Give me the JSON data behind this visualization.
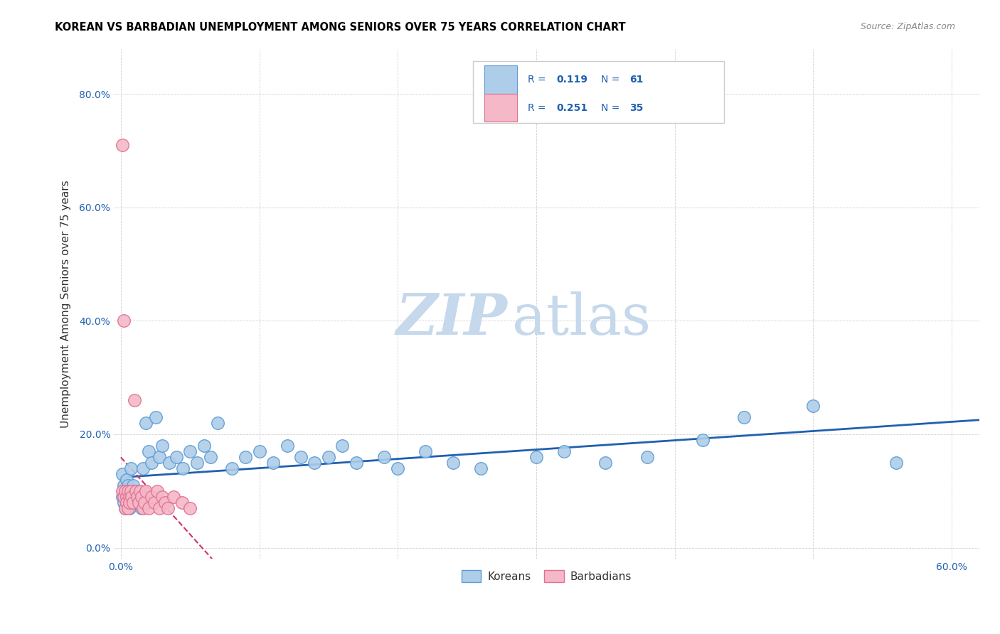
{
  "title": "KOREAN VS BARBADIAN UNEMPLOYMENT AMONG SENIORS OVER 75 YEARS CORRELATION CHART",
  "source": "Source: ZipAtlas.com",
  "ylabel": "Unemployment Among Seniors over 75 years",
  "xlim": [
    -0.005,
    0.62
  ],
  "ylim": [
    -0.02,
    0.88
  ],
  "xticks": [
    0.0,
    0.1,
    0.2,
    0.3,
    0.4,
    0.5,
    0.6
  ],
  "yticks": [
    0.0,
    0.2,
    0.4,
    0.6,
    0.8
  ],
  "xtick_labels": [
    "0.0%",
    "",
    "",
    "",
    "",
    "",
    "60.0%"
  ],
  "ytick_labels": [
    "0.0%",
    "20.0%",
    "40.0%",
    "60.0%",
    "80.0%"
  ],
  "korean_color": "#aecde8",
  "barbadian_color": "#f5b8c8",
  "korean_edge_color": "#5b9bd5",
  "barbadian_edge_color": "#e07090",
  "trend_korean_color": "#2060b0",
  "trend_barbadian_color": "#d03060",
  "watermark_zip": "ZIP",
  "watermark_atlas": "atlas",
  "watermark_color_zip": "#c5d8ec",
  "watermark_color_atlas": "#c5d8ec",
  "legend_korean_label": "Koreans",
  "legend_barbadian_label": "Barbadians",
  "korean_x": [
    0.001,
    0.001,
    0.002,
    0.002,
    0.003,
    0.003,
    0.004,
    0.004,
    0.005,
    0.005,
    0.006,
    0.006,
    0.007,
    0.007,
    0.008,
    0.008,
    0.009,
    0.01,
    0.011,
    0.012,
    0.013,
    0.014,
    0.015,
    0.016,
    0.018,
    0.02,
    0.022,
    0.025,
    0.028,
    0.03,
    0.035,
    0.04,
    0.045,
    0.05,
    0.055,
    0.06,
    0.065,
    0.07,
    0.08,
    0.09,
    0.1,
    0.11,
    0.12,
    0.13,
    0.14,
    0.15,
    0.16,
    0.17,
    0.19,
    0.2,
    0.22,
    0.24,
    0.26,
    0.3,
    0.32,
    0.35,
    0.38,
    0.42,
    0.45,
    0.5,
    0.56
  ],
  "korean_y": [
    0.13,
    0.09,
    0.11,
    0.08,
    0.1,
    0.07,
    0.12,
    0.09,
    0.11,
    0.08,
    0.1,
    0.07,
    0.14,
    0.09,
    0.1,
    0.08,
    0.11,
    0.1,
    0.09,
    0.08,
    0.1,
    0.09,
    0.07,
    0.14,
    0.22,
    0.17,
    0.15,
    0.23,
    0.16,
    0.18,
    0.15,
    0.16,
    0.14,
    0.17,
    0.15,
    0.18,
    0.16,
    0.22,
    0.14,
    0.16,
    0.17,
    0.15,
    0.18,
    0.16,
    0.15,
    0.16,
    0.18,
    0.15,
    0.16,
    0.14,
    0.17,
    0.15,
    0.14,
    0.16,
    0.17,
    0.15,
    0.16,
    0.19,
    0.23,
    0.25,
    0.15
  ],
  "barbadian_x": [
    0.001,
    0.001,
    0.002,
    0.002,
    0.003,
    0.003,
    0.004,
    0.004,
    0.005,
    0.005,
    0.006,
    0.006,
    0.007,
    0.008,
    0.009,
    0.01,
    0.011,
    0.012,
    0.013,
    0.014,
    0.015,
    0.016,
    0.017,
    0.018,
    0.02,
    0.022,
    0.024,
    0.026,
    0.028,
    0.03,
    0.032,
    0.034,
    0.038,
    0.044,
    0.05
  ],
  "barbadian_y": [
    0.71,
    0.1,
    0.4,
    0.09,
    0.1,
    0.07,
    0.09,
    0.08,
    0.1,
    0.07,
    0.09,
    0.08,
    0.1,
    0.09,
    0.08,
    0.26,
    0.1,
    0.09,
    0.08,
    0.1,
    0.09,
    0.07,
    0.08,
    0.1,
    0.07,
    0.09,
    0.08,
    0.1,
    0.07,
    0.09,
    0.08,
    0.07,
    0.09,
    0.08,
    0.07
  ]
}
